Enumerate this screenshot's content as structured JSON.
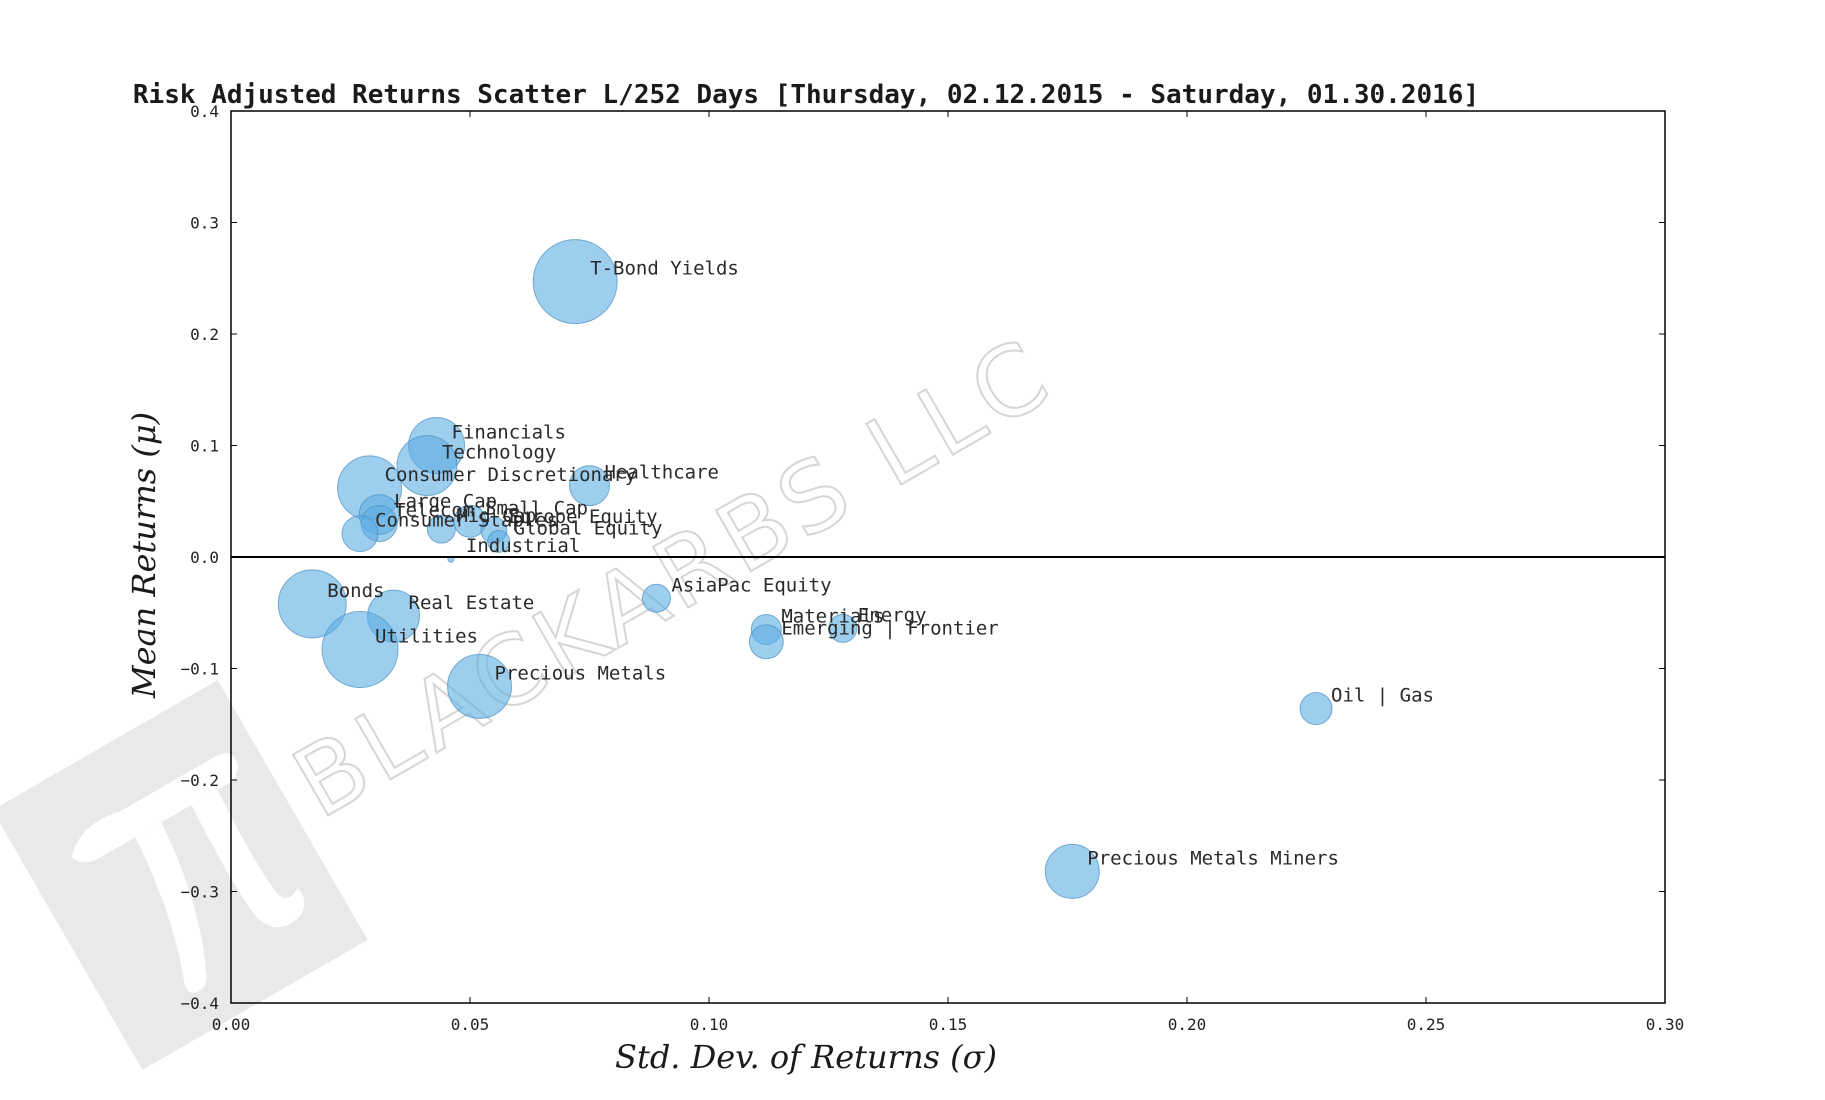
{
  "watermark": {
    "text": "BLACKARBS LLC",
    "logo": "pi-logo-icon"
  },
  "chart_data": {
    "type": "scatter",
    "title": "Risk Adjusted Returns Scatter L/252 Days [Thursday, 02.12.2015 - Saturday, 01.30.2016]",
    "xlabel": "Std.  Dev.  of  Returns     (σ)",
    "ylabel": "Mean  Returns     (μ)",
    "xlim": [
      0.0,
      0.3
    ],
    "ylim": [
      -0.4,
      0.4
    ],
    "xticks": [
      "0.00",
      "0.05",
      "0.10",
      "0.15",
      "0.20",
      "0.25",
      "0.30"
    ],
    "yticks": [
      "0.4",
      "0.3",
      "0.2",
      "0.1",
      "0.0",
      "−0.1",
      "−0.2",
      "−0.3",
      "−0.4"
    ],
    "grid": false,
    "zero_line": true,
    "marker_color": "#5dade2",
    "points": [
      {
        "label": "T-Bond Yields",
        "x": 0.072,
        "y": 0.247,
        "size": 42
      },
      {
        "label": "Financials",
        "x": 0.043,
        "y": 0.1,
        "size": 28
      },
      {
        "label": "Technology",
        "x": 0.041,
        "y": 0.082,
        "size": 30
      },
      {
        "label": "Consumer Discretionary",
        "x": 0.029,
        "y": 0.062,
        "size": 32
      },
      {
        "label": "Healthcare",
        "x": 0.075,
        "y": 0.064,
        "size": 20
      },
      {
        "label": "Large Cap",
        "x": 0.031,
        "y": 0.038,
        "size": 20
      },
      {
        "label": "Small Cap",
        "x": 0.05,
        "y": 0.032,
        "size": 16
      },
      {
        "label": "Telecom",
        "x": 0.031,
        "y": 0.03,
        "size": 18
      },
      {
        "label": "Mid Cap",
        "x": 0.044,
        "y": 0.025,
        "size": 14
      },
      {
        "label": "Europe Equity",
        "x": 0.055,
        "y": 0.024,
        "size": 13
      },
      {
        "label": "Consumer Staples",
        "x": 0.027,
        "y": 0.021,
        "size": 18
      },
      {
        "label": "Global Equity",
        "x": 0.056,
        "y": 0.014,
        "size": 11
      },
      {
        "label": "Industrial",
        "x": 0.046,
        "y": -0.002,
        "size": 3
      },
      {
        "label": "AsiaPac Equity",
        "x": 0.089,
        "y": -0.037,
        "size": 14
      },
      {
        "label": "Bonds",
        "x": 0.017,
        "y": -0.042,
        "size": 34
      },
      {
        "label": "Real Estate",
        "x": 0.034,
        "y": -0.053,
        "size": 26
      },
      {
        "label": "Materials",
        "x": 0.112,
        "y": -0.065,
        "size": 15
      },
      {
        "label": "Energy",
        "x": 0.128,
        "y": -0.064,
        "size": 14
      },
      {
        "label": "Emerging | Frontier",
        "x": 0.112,
        "y": -0.076,
        "size": 17
      },
      {
        "label": "Utilities",
        "x": 0.027,
        "y": -0.083,
        "size": 38
      },
      {
        "label": "Precious Metals",
        "x": 0.052,
        "y": -0.116,
        "size": 32
      },
      {
        "label": "Oil | Gas",
        "x": 0.227,
        "y": -0.136,
        "size": 16
      },
      {
        "label": "Precious Metals Miners",
        "x": 0.176,
        "y": -0.282,
        "size": 27
      }
    ]
  }
}
